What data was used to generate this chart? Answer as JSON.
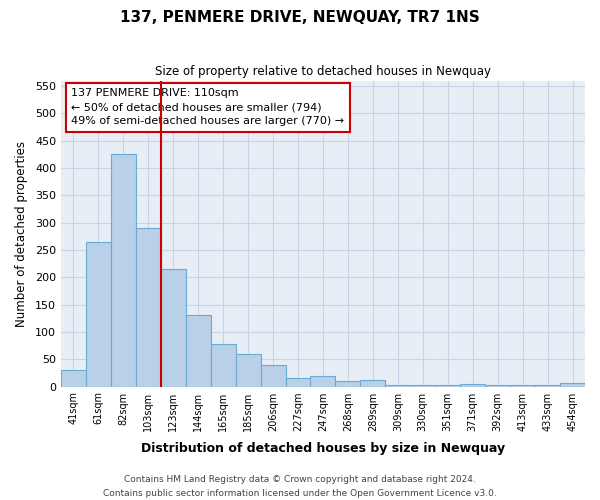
{
  "title": "137, PENMERE DRIVE, NEWQUAY, TR7 1NS",
  "subtitle": "Size of property relative to detached houses in Newquay",
  "xlabel": "Distribution of detached houses by size in Newquay",
  "ylabel": "Number of detached properties",
  "categories": [
    "41sqm",
    "61sqm",
    "82sqm",
    "103sqm",
    "123sqm",
    "144sqm",
    "165sqm",
    "185sqm",
    "206sqm",
    "227sqm",
    "247sqm",
    "268sqm",
    "289sqm",
    "309sqm",
    "330sqm",
    "351sqm",
    "371sqm",
    "392sqm",
    "413sqm",
    "433sqm",
    "454sqm"
  ],
  "values": [
    30,
    265,
    425,
    290,
    215,
    130,
    78,
    60,
    40,
    16,
    19,
    10,
    12,
    3,
    3,
    3,
    5,
    3,
    3,
    3,
    6
  ],
  "bar_color": "#b8d0e8",
  "bar_edge_color": "#6aaad4",
  "vline_x_index": 3.5,
  "vline_color": "#cc0000",
  "annotation_text": "137 PENMERE DRIVE: 110sqm\n← 50% of detached houses are smaller (794)\n49% of semi-detached houses are larger (770) →",
  "annotation_box_color": "#ffffff",
  "annotation_box_edge_color": "#cc0000",
  "ylim": [
    0,
    560
  ],
  "yticks": [
    0,
    50,
    100,
    150,
    200,
    250,
    300,
    350,
    400,
    450,
    500,
    550
  ],
  "footer_line1": "Contains HM Land Registry data © Crown copyright and database right 2024.",
  "footer_line2": "Contains public sector information licensed under the Open Government Licence v3.0.",
  "fig_bg_color": "#ffffff",
  "plot_bg_color": "#e8eef6",
  "grid_color": "#c8d4e4"
}
